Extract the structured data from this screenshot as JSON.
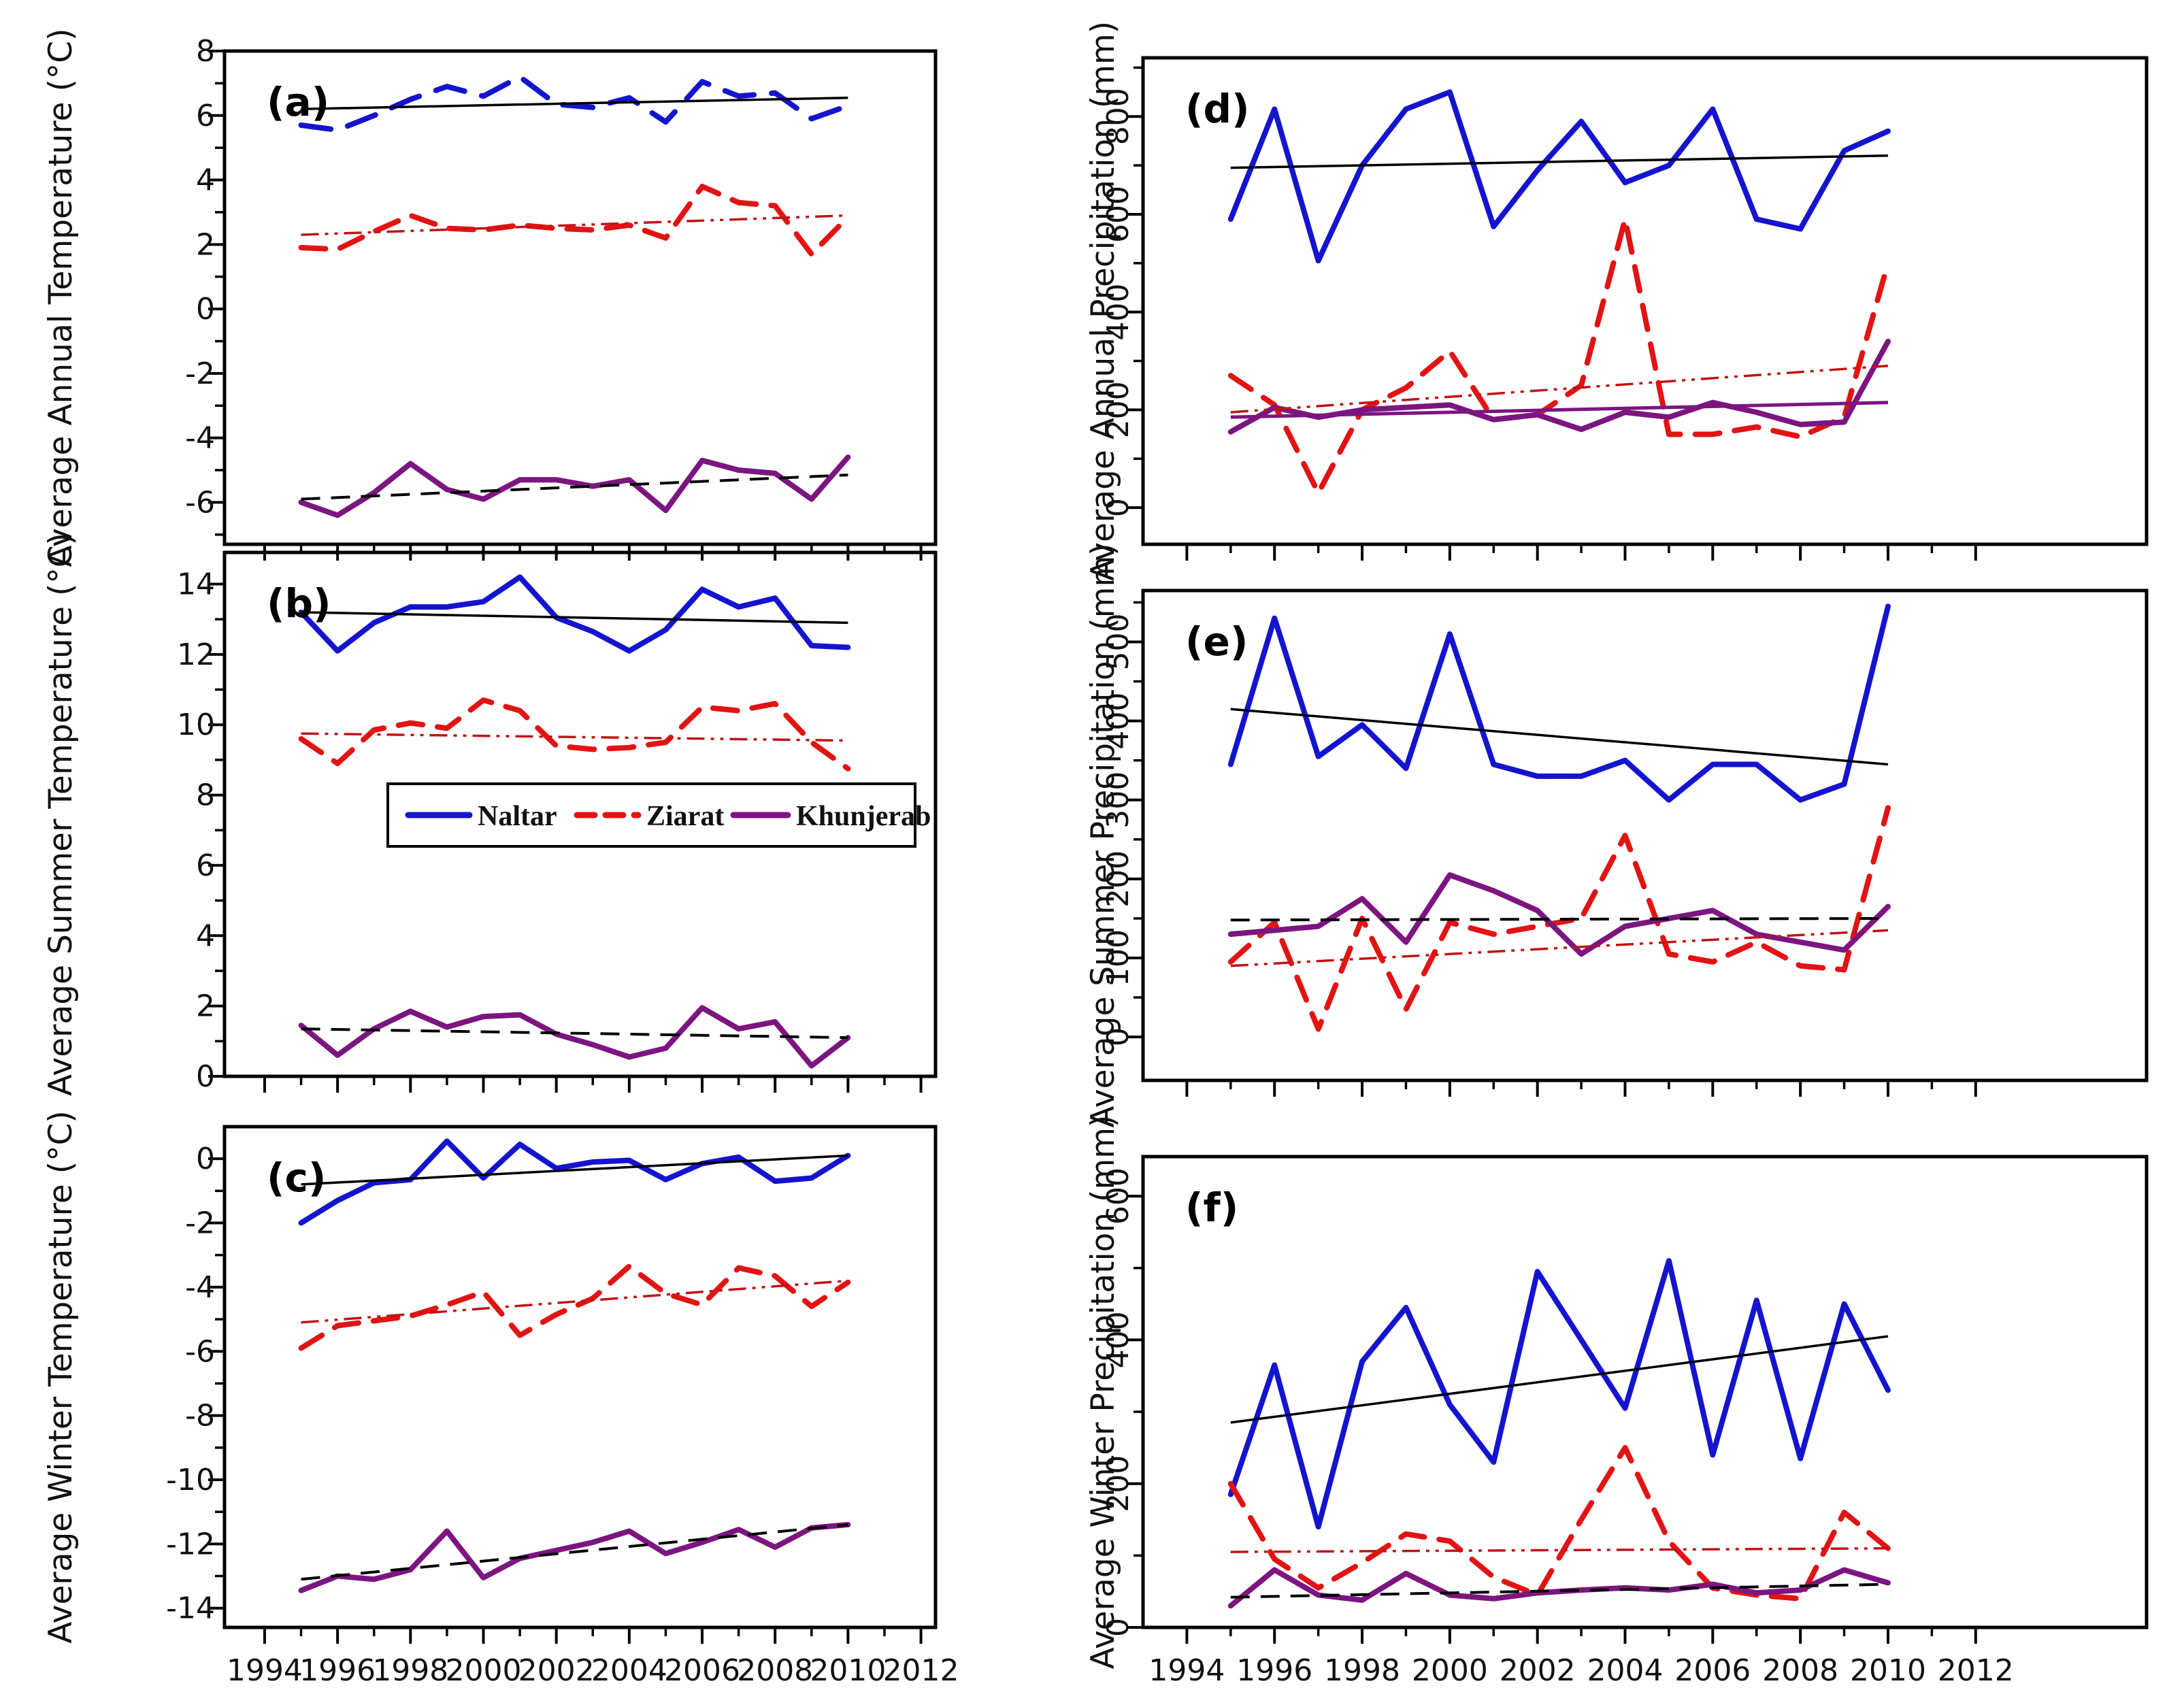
{
  "figure": {
    "colors": {
      "naltar": "#1414cf",
      "ziarat": "#e21313",
      "khunjerab": "#7c1580",
      "trend_black": "#000000",
      "trend_red": "#c01414",
      "axis": "#000000"
    },
    "x_axis": {
      "tick_labels": [
        "1994",
        "1996",
        "1998",
        "2000",
        "2002",
        "2004",
        "2006",
        "2008",
        "2010",
        "2012"
      ],
      "major_ticks": [
        1994,
        1996,
        1998,
        2000,
        2002,
        2004,
        2006,
        2008,
        2010,
        2012
      ],
      "minor_ticks": [
        1995,
        1997,
        1999,
        2001,
        2003,
        2005,
        2007,
        2009,
        2011
      ]
    },
    "legend": {
      "entries": [
        {
          "label": "Naltar",
          "line": "solid",
          "color_key": "naltar"
        },
        {
          "label": "Ziarat",
          "line": "dashed",
          "color_key": "ziarat"
        },
        {
          "label": "Khunjerab",
          "line": "solid",
          "color_key": "khunjerab"
        }
      ]
    }
  },
  "chart_data": [
    {
      "id": "a",
      "type": "line",
      "panel_label": "(a)",
      "ylabel": "Average Annual Temperature (°C)",
      "ylim": [
        -7.3,
        8
      ],
      "yticks": [
        8,
        6,
        4,
        2,
        0,
        -2,
        -4,
        -6
      ],
      "yminor": [
        7,
        5,
        3,
        1,
        -1,
        -3,
        -5,
        -7
      ],
      "ytick_rotated": false,
      "years": [
        1995,
        1996,
        1997,
        1998,
        1999,
        2000,
        2001,
        2002,
        2003,
        2004,
        2005,
        2006,
        2007,
        2008,
        2009,
        2010
      ],
      "series": [
        {
          "name": "Naltar",
          "line": "dashed",
          "color_key": "naltar",
          "values": [
            5.7,
            5.55,
            6.0,
            6.5,
            6.9,
            6.6,
            7.2,
            6.35,
            6.25,
            6.55,
            5.8,
            7.05,
            6.6,
            6.7,
            5.9,
            6.3
          ]
        },
        {
          "name": "Ziarat",
          "line": "dashed",
          "color_key": "ziarat",
          "values": [
            1.9,
            1.85,
            2.4,
            2.9,
            2.5,
            2.45,
            2.6,
            2.5,
            2.45,
            2.6,
            2.2,
            3.8,
            3.3,
            3.2,
            1.7,
            2.85
          ]
        },
        {
          "name": "Khunjerab",
          "line": "solid",
          "color_key": "khunjerab",
          "values": [
            -6.0,
            -6.4,
            -5.7,
            -4.8,
            -5.6,
            -5.9,
            -5.3,
            -5.3,
            -5.5,
            -5.3,
            -6.25,
            -4.7,
            -5.0,
            -5.1,
            -5.9,
            -4.6
          ]
        }
      ],
      "trends": [
        {
          "series": "Naltar",
          "style": "solid_black",
          "start": 6.2,
          "end": 6.55
        },
        {
          "series": "Ziarat",
          "style": "dashdot_red",
          "start": 2.3,
          "end": 2.9
        },
        {
          "series": "Khunjerab",
          "style": "dashed_black",
          "start": -5.9,
          "end": -5.15
        }
      ]
    },
    {
      "id": "b",
      "type": "line",
      "panel_label": "(b)",
      "ylabel": "Average Summer Temperature (°C)",
      "ylim": [
        0,
        14.9
      ],
      "yticks": [
        14,
        12,
        10,
        8,
        6,
        4,
        2,
        0
      ],
      "yminor": [
        13,
        11,
        9,
        7,
        5,
        3,
        1
      ],
      "ytick_rotated": false,
      "years": [
        1995,
        1996,
        1997,
        1998,
        1999,
        2000,
        2001,
        2002,
        2003,
        2004,
        2005,
        2006,
        2007,
        2008,
        2009,
        2010
      ],
      "series": [
        {
          "name": "Naltar",
          "line": "solid",
          "color_key": "naltar",
          "values": [
            13.2,
            12.1,
            12.9,
            13.35,
            13.35,
            13.5,
            14.2,
            13.05,
            12.65,
            12.1,
            12.7,
            13.85,
            13.35,
            13.6,
            12.25,
            12.2
          ]
        },
        {
          "name": "Ziarat",
          "line": "dashed",
          "color_key": "ziarat",
          "values": [
            9.6,
            8.9,
            9.85,
            10.05,
            9.9,
            10.7,
            10.4,
            9.4,
            9.3,
            9.35,
            9.5,
            10.5,
            10.4,
            10.6,
            9.5,
            8.75
          ]
        },
        {
          "name": "Khunjerab",
          "line": "solid",
          "color_key": "khunjerab",
          "values": [
            1.45,
            0.6,
            1.35,
            1.85,
            1.4,
            1.7,
            1.75,
            1.2,
            0.9,
            0.55,
            0.8,
            1.95,
            1.35,
            1.55,
            0.3,
            1.1
          ]
        }
      ],
      "trends": [
        {
          "series": "Naltar",
          "style": "solid_black",
          "start": 13.2,
          "end": 12.9
        },
        {
          "series": "Ziarat",
          "style": "dashdot_red",
          "start": 9.75,
          "end": 9.55
        },
        {
          "series": "Khunjerab",
          "style": "dashed_black",
          "start": 1.35,
          "end": 1.1
        }
      ]
    },
    {
      "id": "c",
      "type": "line",
      "panel_label": "(c)",
      "ylabel": "Average Winter Temperature (°C)",
      "ylim": [
        -14.6,
        1.0
      ],
      "yticks": [
        0,
        -2,
        -4,
        -6,
        -8,
        -10,
        -12,
        -14
      ],
      "yminor": [
        -1,
        -3,
        -5,
        -7,
        -9,
        -11,
        -13
      ],
      "ytick_rotated": false,
      "years": [
        1995,
        1996,
        1997,
        1998,
        1999,
        2000,
        2001,
        2002,
        2003,
        2004,
        2005,
        2006,
        2007,
        2008,
        2009,
        2010
      ],
      "series": [
        {
          "name": "Naltar",
          "line": "solid",
          "color_key": "naltar",
          "values": [
            -2.0,
            -1.3,
            -0.75,
            -0.65,
            0.55,
            -0.6,
            0.45,
            -0.3,
            -0.1,
            -0.05,
            -0.65,
            -0.15,
            0.05,
            -0.7,
            -0.6,
            0.1
          ]
        },
        {
          "name": "Ziarat",
          "line": "dashed",
          "color_key": "ziarat",
          "values": [
            -5.9,
            -5.2,
            -5.05,
            -4.9,
            -4.55,
            -4.15,
            -5.5,
            -4.85,
            -4.35,
            -3.35,
            -4.2,
            -4.55,
            -3.4,
            -3.65,
            -4.6,
            -3.85
          ]
        },
        {
          "name": "Khunjerab",
          "line": "solid",
          "color_key": "khunjerab",
          "values": [
            -13.45,
            -13.0,
            -13.1,
            -12.8,
            -11.6,
            -13.05,
            -12.45,
            -12.2,
            -11.95,
            -11.6,
            -12.3,
            -11.95,
            -11.55,
            -12.1,
            -11.5,
            -11.4
          ]
        }
      ],
      "trends": [
        {
          "series": "Naltar",
          "style": "solid_black",
          "start": -0.8,
          "end": 0.1
        },
        {
          "series": "Ziarat",
          "style": "dashdot_red",
          "start": -5.1,
          "end": -3.8
        },
        {
          "series": "Khunjerab",
          "style": "dashed_black",
          "start": -13.1,
          "end": -11.4
        }
      ]
    },
    {
      "id": "d",
      "type": "line",
      "panel_label": "(d)",
      "ylabel": "Average Annual Precipitation (mm)",
      "ylim": [
        -75,
        920
      ],
      "yticks": [
        800,
        600,
        400,
        200,
        0
      ],
      "yminor": [
        900,
        700,
        500,
        300,
        100
      ],
      "ytick_rotated": true,
      "years": [
        1995,
        1996,
        1997,
        1998,
        1999,
        2000,
        2001,
        2002,
        2003,
        2004,
        2005,
        2006,
        2007,
        2008,
        2009,
        2010
      ],
      "series": [
        {
          "name": "Naltar",
          "line": "solid",
          "color_key": "naltar",
          "values": [
            590,
            815,
            505,
            700,
            815,
            850,
            575,
            690,
            790,
            665,
            700,
            815,
            590,
            570,
            730,
            770
          ]
        },
        {
          "name": "Ziarat",
          "line": "dashed",
          "color_key": "ziarat",
          "values": [
            270,
            210,
            30,
            200,
            245,
            320,
            180,
            190,
            250,
            590,
            150,
            150,
            165,
            145,
            185,
            500
          ]
        },
        {
          "name": "Khunjerab",
          "line": "solid",
          "color_key": "khunjerab",
          "values": [
            155,
            205,
            185,
            200,
            205,
            210,
            180,
            190,
            160,
            195,
            185,
            215,
            195,
            170,
            175,
            340
          ]
        }
      ],
      "trends": [
        {
          "series": "Naltar",
          "style": "solid_black",
          "start": 695,
          "end": 720
        },
        {
          "series": "Ziarat",
          "style": "dashdot_red",
          "start": 195,
          "end": 290
        },
        {
          "series": "Khunjerab",
          "style": "solid_purple",
          "start": 185,
          "end": 215
        }
      ]
    },
    {
      "id": "e",
      "type": "line",
      "panel_label": "(e)",
      "ylabel": "Average Summer Precipitation (mm)",
      "ylim": [
        -55,
        565
      ],
      "yticks": [
        500,
        400,
        300,
        200,
        100,
        0
      ],
      "yminor": [
        550,
        450,
        350,
        250,
        150,
        50
      ],
      "ytick_rotated": true,
      "years": [
        1995,
        1996,
        1997,
        1998,
        1999,
        2000,
        2001,
        2002,
        2003,
        2004,
        2005,
        2006,
        2007,
        2008,
        2009,
        2010
      ],
      "series": [
        {
          "name": "Naltar",
          "line": "solid",
          "color_key": "naltar",
          "values": [
            345,
            530,
            355,
            395,
            340,
            510,
            345,
            330,
            330,
            350,
            300,
            345,
            345,
            300,
            320,
            545
          ]
        },
        {
          "name": "Ziarat",
          "line": "dashed",
          "color_key": "ziarat",
          "values": [
            95,
            145,
            10,
            150,
            35,
            145,
            130,
            140,
            150,
            255,
            105,
            95,
            120,
            90,
            85,
            290
          ]
        },
        {
          "name": "Khunjerab",
          "line": "solid",
          "color_key": "khunjerab",
          "values": [
            130,
            135,
            140,
            175,
            120,
            205,
            185,
            160,
            105,
            140,
            150,
            160,
            130,
            120,
            110,
            165
          ]
        }
      ],
      "trends": [
        {
          "series": "Naltar",
          "style": "solid_black",
          "start": 415,
          "end": 345
        },
        {
          "series": "Ziarat",
          "style": "dashdot_red",
          "start": 90,
          "end": 135
        },
        {
          "series": "Khunjerab",
          "style": "dashed_black",
          "start": 148,
          "end": 150
        }
      ]
    },
    {
      "id": "f",
      "type": "line",
      "panel_label": "(f)",
      "ylabel": "Average Winter Precipitation (mm)",
      "ylim": [
        0,
        655
      ],
      "yticks": [
        600,
        400,
        200,
        0
      ],
      "yminor": [
        500,
        300,
        100
      ],
      "ytick_rotated": true,
      "years": [
        1995,
        1996,
        1997,
        1998,
        1999,
        2000,
        2001,
        2002,
        2003,
        2004,
        2005,
        2006,
        2007,
        2008,
        2009,
        2010
      ],
      "series": [
        {
          "name": "Naltar",
          "line": "solid",
          "color_key": "naltar",
          "values": [
            185,
            365,
            140,
            370,
            445,
            310,
            230,
            495,
            400,
            305,
            510,
            240,
            455,
            235,
            450,
            330
          ]
        },
        {
          "name": "Ziarat",
          "line": "dashed",
          "color_key": "ziarat",
          "values": [
            200,
            95,
            55,
            90,
            130,
            120,
            70,
            45,
            150,
            250,
            120,
            55,
            45,
            40,
            160,
            110
          ]
        },
        {
          "name": "Khunjerab",
          "line": "solid",
          "color_key": "khunjerab",
          "values": [
            30,
            80,
            45,
            38,
            75,
            45,
            40,
            48,
            52,
            55,
            52,
            60,
            48,
            52,
            80,
            62
          ]
        }
      ],
      "trends": [
        {
          "series": "Naltar",
          "style": "solid_black",
          "start": 285,
          "end": 405
        },
        {
          "series": "Ziarat",
          "style": "dashdot_red",
          "start": 105,
          "end": 110
        },
        {
          "series": "Khunjerab",
          "style": "dashed_black",
          "start": 42,
          "end": 60
        }
      ]
    }
  ]
}
